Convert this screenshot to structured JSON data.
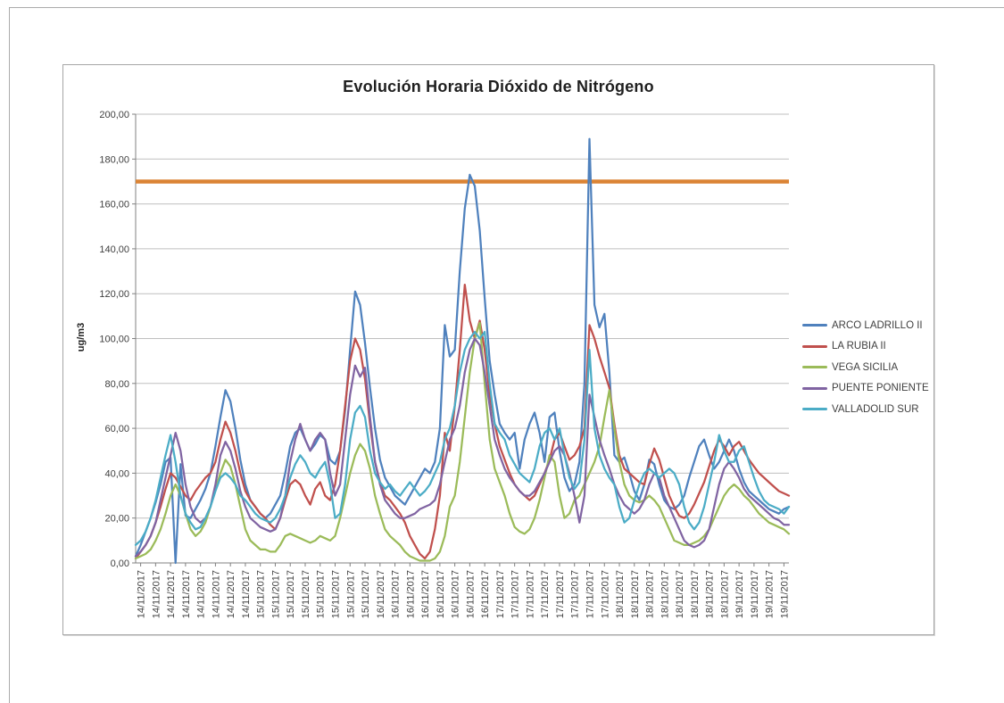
{
  "chart": {
    "title": "Evolución Horaria Dióxido de Nitrógeno",
    "y_axis_label": "ug/m3"
  },
  "colors": {
    "grid": "#bfbfbf",
    "axis": "#808080",
    "tick_text": "#404040",
    "frame_border": "#a6a6a6",
    "page_border": "#ababab"
  },
  "chart_data": {
    "type": "line",
    "title": "Evolución Horaria Dióxido de Nitrógeno",
    "xlabel": "",
    "ylabel": "ug/m3",
    "ylim": [
      0,
      200
    ],
    "ytick_step": 20,
    "y_tick_labels": [
      "0,00",
      "20,00",
      "40,00",
      "60,00",
      "80,00",
      "100,00",
      "120,00",
      "140,00",
      "160,00",
      "180,00",
      "200,00"
    ],
    "x_unit": "hourly, labels every 3 hours",
    "n_points": 132,
    "x_label_start_index": 1,
    "x_label_step": 3,
    "x_tick_labels": [
      "14/11/2017",
      "14/11/2017",
      "14/11/2017",
      "14/11/2017",
      "14/11/2017",
      "14/11/2017",
      "14/11/2017",
      "14/11/2017",
      "15/11/2017",
      "15/11/2017",
      "15/11/2017",
      "15/11/2017",
      "15/11/2017",
      "15/11/2017",
      "15/11/2017",
      "15/11/2017",
      "16/11/2017",
      "16/11/2017",
      "16/11/2017",
      "16/11/2017",
      "16/11/2017",
      "16/11/2017",
      "16/11/2017",
      "16/11/2017",
      "17/11/2017",
      "17/11/2017",
      "17/11/2017",
      "17/11/2017",
      "17/11/2017",
      "17/11/2017",
      "17/11/2017",
      "17/11/2017",
      "18/11/2017",
      "18/11/2017",
      "18/11/2017",
      "18/11/2017",
      "18/11/2017",
      "18/11/2017",
      "18/11/2017",
      "18/11/2017",
      "19/11/2017",
      "19/11/2017",
      "19/11/2017",
      "19/11/2017"
    ],
    "grid": "horizontal",
    "legend_position": "right",
    "threshold_line": {
      "value": 170,
      "color": "#db8435"
    },
    "series": [
      {
        "name": "ARCO LADRILLO II",
        "color": "#4f81bd",
        "values": [
          3,
          8,
          14,
          20,
          27,
          35,
          45,
          47,
          0,
          44,
          21,
          20,
          24,
          28,
          33,
          40,
          52,
          65,
          77,
          72,
          60,
          46,
          35,
          28,
          25,
          22,
          20,
          22,
          26,
          30,
          40,
          52,
          58,
          60,
          55,
          50,
          53,
          57,
          55,
          46,
          44,
          50,
          68,
          95,
          121,
          115,
          98,
          78,
          60,
          46,
          38,
          34,
          30,
          28,
          26,
          30,
          34,
          38,
          42,
          40,
          45,
          60,
          106,
          92,
          95,
          130,
          158,
          173,
          168,
          148,
          118,
          90,
          75,
          62,
          58,
          55,
          58,
          42,
          55,
          62,
          67,
          58,
          45,
          65,
          67,
          50,
          38,
          32,
          35,
          45,
          80,
          189,
          115,
          105,
          111,
          85,
          48,
          45,
          47,
          40,
          32,
          28,
          35,
          46,
          44,
          35,
          28,
          25,
          24,
          26,
          30,
          38,
          45,
          52,
          55,
          48,
          42,
          45,
          50,
          55,
          50,
          42,
          36,
          32,
          30,
          28,
          26,
          24,
          23,
          22,
          24,
          25
        ]
      },
      {
        "name": "LA RUBIA II",
        "color": "#c0504d",
        "values": [
          2,
          5,
          8,
          12,
          18,
          25,
          33,
          40,
          38,
          34,
          30,
          28,
          32,
          35,
          38,
          40,
          45,
          55,
          63,
          58,
          50,
          40,
          32,
          28,
          25,
          22,
          20,
          17,
          15,
          20,
          28,
          35,
          37,
          35,
          30,
          26,
          33,
          36,
          30,
          28,
          35,
          50,
          70,
          90,
          100,
          95,
          82,
          62,
          45,
          36,
          30,
          28,
          25,
          22,
          18,
          12,
          8,
          4,
          2,
          5,
          15,
          30,
          58,
          50,
          70,
          95,
          124,
          108,
          100,
          108,
          95,
          75,
          62,
          52,
          46,
          40,
          35,
          32,
          30,
          28,
          30,
          35,
          40,
          46,
          55,
          58,
          52,
          46,
          48,
          52,
          60,
          106,
          100,
          92,
          85,
          78,
          62,
          48,
          42,
          40,
          38,
          36,
          35,
          44,
          51,
          46,
          38,
          30,
          25,
          21,
          20,
          22,
          26,
          31,
          36,
          43,
          50,
          55,
          52,
          48,
          52,
          54,
          50,
          46,
          43,
          40,
          38,
          36,
          34,
          32,
          31,
          30
        ]
      },
      {
        "name": "VEGA SICILIA",
        "color": "#9bbb59",
        "values": [
          2,
          3,
          4,
          6,
          10,
          15,
          22,
          30,
          35,
          30,
          22,
          15,
          12,
          14,
          18,
          25,
          33,
          40,
          46,
          43,
          35,
          25,
          15,
          10,
          8,
          6,
          6,
          5,
          5,
          8,
          12,
          13,
          12,
          11,
          10,
          9,
          10,
          12,
          11,
          10,
          12,
          20,
          30,
          40,
          48,
          53,
          50,
          42,
          30,
          22,
          15,
          12,
          10,
          8,
          5,
          3,
          2,
          1,
          1,
          1,
          2,
          5,
          12,
          25,
          30,
          45,
          65,
          85,
          100,
          107,
          80,
          55,
          42,
          36,
          30,
          22,
          16,
          14,
          13,
          15,
          20,
          28,
          38,
          48,
          45,
          30,
          20,
          22,
          28,
          30,
          35,
          40,
          45,
          52,
          65,
          77,
          60,
          45,
          35,
          30,
          28,
          27,
          28,
          30,
          28,
          25,
          20,
          15,
          10,
          9,
          8,
          8,
          9,
          10,
          12,
          15,
          20,
          25,
          30,
          33,
          35,
          33,
          30,
          28,
          25,
          22,
          20,
          18,
          17,
          16,
          15,
          13
        ]
      },
      {
        "name": "PUENTE PONIENTE",
        "color": "#8064a2",
        "values": [
          3,
          5,
          8,
          12,
          18,
          28,
          38,
          48,
          58,
          50,
          35,
          25,
          20,
          18,
          20,
          25,
          35,
          48,
          54,
          50,
          42,
          32,
          25,
          20,
          18,
          16,
          15,
          14,
          15,
          20,
          30,
          45,
          55,
          62,
          55,
          50,
          55,
          58,
          55,
          40,
          30,
          35,
          55,
          75,
          88,
          83,
          87,
          65,
          45,
          35,
          28,
          25,
          22,
          20,
          20,
          21,
          22,
          24,
          25,
          26,
          28,
          35,
          45,
          55,
          60,
          70,
          85,
          95,
          100,
          97,
          85,
          70,
          55,
          48,
          42,
          38,
          35,
          32,
          30,
          30,
          32,
          36,
          40,
          45,
          50,
          52,
          48,
          40,
          30,
          18,
          30,
          75,
          65,
          55,
          48,
          42,
          35,
          30,
          26,
          24,
          22,
          24,
          28,
          35,
          40,
          38,
          30,
          25,
          20,
          15,
          10,
          8,
          7,
          8,
          10,
          15,
          25,
          35,
          42,
          45,
          42,
          38,
          33,
          30,
          28,
          26,
          24,
          22,
          20,
          19,
          17,
          17
        ]
      },
      {
        "name": "VALLADOLID SUR",
        "color": "#4bacc6",
        "values": [
          8,
          10,
          14,
          20,
          28,
          38,
          48,
          57,
          45,
          30,
          22,
          18,
          15,
          16,
          20,
          25,
          32,
          38,
          40,
          38,
          35,
          30,
          28,
          25,
          22,
          20,
          19,
          18,
          20,
          24,
          30,
          38,
          44,
          48,
          45,
          40,
          38,
          42,
          45,
          35,
          20,
          22,
          35,
          55,
          67,
          70,
          65,
          50,
          40,
          36,
          33,
          35,
          32,
          30,
          33,
          36,
          33,
          30,
          32,
          35,
          40,
          45,
          55,
          60,
          70,
          85,
          95,
          100,
          103,
          100,
          103,
          80,
          62,
          58,
          55,
          48,
          44,
          40,
          38,
          36,
          42,
          52,
          58,
          60,
          55,
          60,
          48,
          38,
          33,
          36,
          55,
          95,
          60,
          48,
          42,
          38,
          35,
          25,
          18,
          20,
          28,
          35,
          40,
          42,
          40,
          38,
          40,
          42,
          40,
          35,
          25,
          18,
          15,
          18,
          25,
          35,
          45,
          57,
          50,
          45,
          45,
          50,
          52,
          45,
          38,
          32,
          28,
          26,
          25,
          24,
          22,
          25
        ]
      }
    ]
  }
}
